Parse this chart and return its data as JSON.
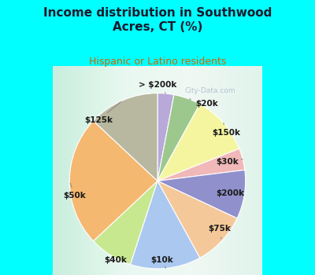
{
  "title": "Income distribution in Southwood\nAcres, CT (%)",
  "subtitle": "Hispanic or Latino residents",
  "background_color": "#00FFFF",
  "labels": [
    "> $200k",
    "$20k",
    "$150k",
    "$30k",
    "$200k",
    "$75k",
    "$10k",
    "$40k",
    "$50k",
    "$125k"
  ],
  "values": [
    3,
    5,
    11,
    4,
    9,
    10,
    13,
    8,
    24,
    13
  ],
  "colors": [
    "#b8a9d9",
    "#9dc88d",
    "#f5f5a0",
    "#f0b8b8",
    "#9090cc",
    "#f5c89a",
    "#aac8f0",
    "#c8e890",
    "#f5b870",
    "#b8b8a0"
  ],
  "watermark": "City-Data.com",
  "startangle": 90,
  "title_color": "#1a1a2e",
  "subtitle_color": "#cc6600",
  "label_positions": {
    "> $200k": [
      0.35,
      0.88,
      "center"
    ],
    "$20k": [
      0.62,
      0.78,
      "left"
    ],
    "$150k": [
      0.75,
      0.62,
      "left"
    ],
    "$30k": [
      0.8,
      0.48,
      "left"
    ],
    "$200k": [
      0.82,
      0.35,
      "left"
    ],
    "$75k": [
      0.76,
      0.2,
      "left"
    ],
    "$10k": [
      0.52,
      0.08,
      "center"
    ],
    "$40k": [
      0.3,
      0.08,
      "center"
    ],
    "$50k": [
      0.05,
      0.35,
      "right"
    ],
    "$125k": [
      0.18,
      0.72,
      "left"
    ]
  }
}
